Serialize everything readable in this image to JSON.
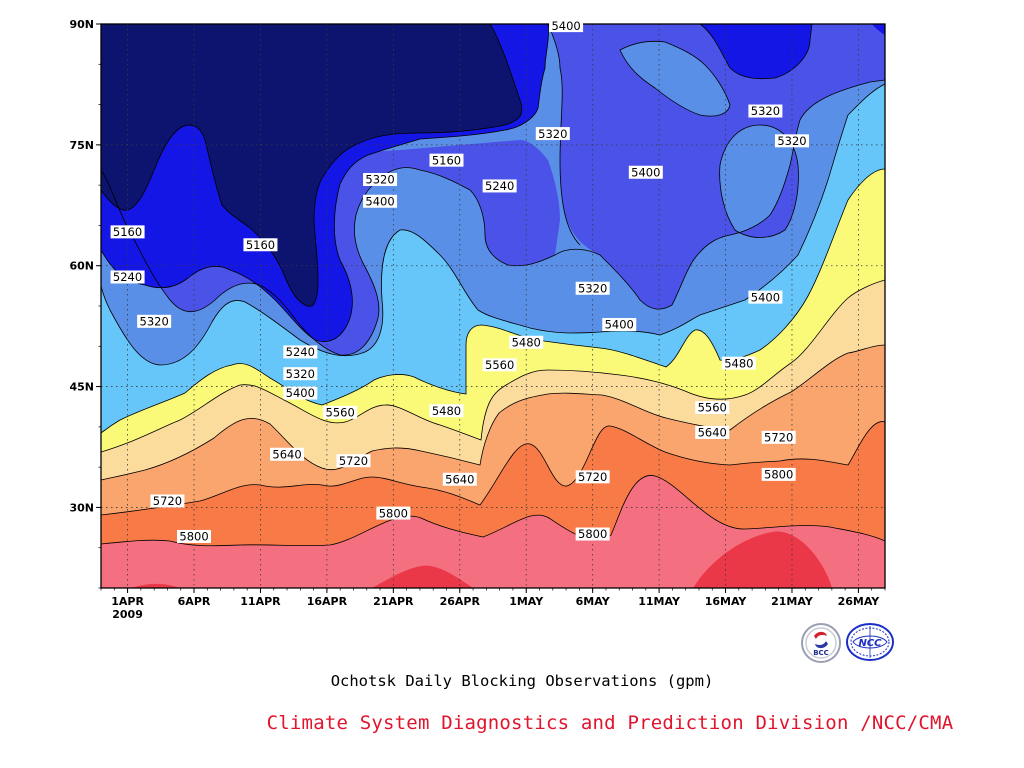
{
  "chart_data": {
    "type": "heatmap",
    "title": "Ochotsk Daily Blocking Observations (gpm)",
    "units": "gpm",
    "x_axis": {
      "tick_labels": [
        "1APR",
        "6APR",
        "11APR",
        "16APR",
        "21APR",
        "26APR",
        "1MAY",
        "6MAY",
        "11MAY",
        "16MAY",
        "21MAY",
        "26MAY"
      ],
      "year_label": "2009",
      "range": [
        "2009-03-30",
        "2009-05-28"
      ]
    },
    "y_axis": {
      "tick_labels": [
        "30N",
        "45N",
        "60N",
        "75N",
        "90N"
      ],
      "tick_values": [
        30,
        45,
        60,
        75,
        90
      ],
      "range": [
        20,
        90
      ]
    },
    "grid": true,
    "contour_levels": [
      5160,
      5240,
      5320,
      5400,
      5480,
      5560,
      5640,
      5720,
      5800,
      5880
    ],
    "fill_colors": {
      "below_5160": "#0c1470",
      "5160_5240": "#1416e6",
      "5240_5320": "#4a52e8",
      "5320_5400": "#5a8fe8",
      "5400_5480": "#66c6fa",
      "5480_5560": "#fafa78",
      "5560_5640": "#fcdc9c",
      "5640_5720": "#faa46e",
      "5720_5800": "#f87a46",
      "5800_5880": "#f47080",
      "above_5880": "#ea3848"
    },
    "contour_labels": [
      {
        "date": "2009-04-01",
        "lat": 64.2,
        "value": "5160"
      },
      {
        "date": "2009-04-01",
        "lat": 58.6,
        "value": "5240"
      },
      {
        "date": "2009-04-03",
        "lat": 53.1,
        "value": "5320"
      },
      {
        "date": "2009-04-11",
        "lat": 62.6,
        "value": "5160"
      },
      {
        "date": "2009-04-14",
        "lat": 49.3,
        "value": "5240"
      },
      {
        "date": "2009-04-14",
        "lat": 46.6,
        "value": "5320"
      },
      {
        "date": "2009-04-14",
        "lat": 44.2,
        "value": "5400"
      },
      {
        "date": "2009-04-20",
        "lat": 70.7,
        "value": "5320"
      },
      {
        "date": "2009-04-20",
        "lat": 68.0,
        "value": "5400"
      },
      {
        "date": "2009-04-25",
        "lat": 73.1,
        "value": "5160"
      },
      {
        "date": "2009-04-29",
        "lat": 69.9,
        "value": "5240"
      },
      {
        "date": "2009-05-04",
        "lat": 89.8,
        "value": "5400"
      },
      {
        "date": "2009-05-03",
        "lat": 76.4,
        "value": "5320"
      },
      {
        "date": "2009-05-10",
        "lat": 71.6,
        "value": "5400"
      },
      {
        "date": "2009-05-19",
        "lat": 79.2,
        "value": "5320"
      },
      {
        "date": "2009-05-21",
        "lat": 75.5,
        "value": "5320"
      },
      {
        "date": "2009-05-06",
        "lat": 57.2,
        "value": "5320"
      },
      {
        "date": "2009-05-08",
        "lat": 52.7,
        "value": "5400"
      },
      {
        "date": "2009-05-01",
        "lat": 50.5,
        "value": "5480"
      },
      {
        "date": "2009-04-29",
        "lat": 47.7,
        "value": "5560"
      },
      {
        "date": "2009-05-19",
        "lat": 56.1,
        "value": "5400"
      },
      {
        "date": "2009-05-17",
        "lat": 47.9,
        "value": "5480"
      },
      {
        "date": "2009-05-15",
        "lat": 42.4,
        "value": "5560"
      },
      {
        "date": "2009-04-17",
        "lat": 41.8,
        "value": "5560"
      },
      {
        "date": "2009-04-25",
        "lat": 42.0,
        "value": "5480"
      },
      {
        "date": "2009-04-13",
        "lat": 36.6,
        "value": "5640"
      },
      {
        "date": "2009-04-18",
        "lat": 35.8,
        "value": "5720"
      },
      {
        "date": "2009-04-26",
        "lat": 33.5,
        "value": "5640"
      },
      {
        "date": "2009-04-04",
        "lat": 30.8,
        "value": "5720"
      },
      {
        "date": "2009-04-06",
        "lat": 26.4,
        "value": "5800"
      },
      {
        "date": "2009-04-21",
        "lat": 29.3,
        "value": "5800"
      },
      {
        "date": "2009-05-06",
        "lat": 33.8,
        "value": "5720"
      },
      {
        "date": "2009-05-06",
        "lat": 26.7,
        "value": "5800"
      },
      {
        "date": "2009-05-15",
        "lat": 39.3,
        "value": "5640"
      },
      {
        "date": "2009-05-20",
        "lat": 38.7,
        "value": "5720"
      },
      {
        "date": "2009-05-20",
        "lat": 34.1,
        "value": "5800"
      }
    ]
  },
  "footer": {
    "credit": "Climate System Diagnostics and Prediction Division /NCC/CMA"
  },
  "logos": {
    "bcc_text": "BCC",
    "ncc_text": "NCC"
  }
}
